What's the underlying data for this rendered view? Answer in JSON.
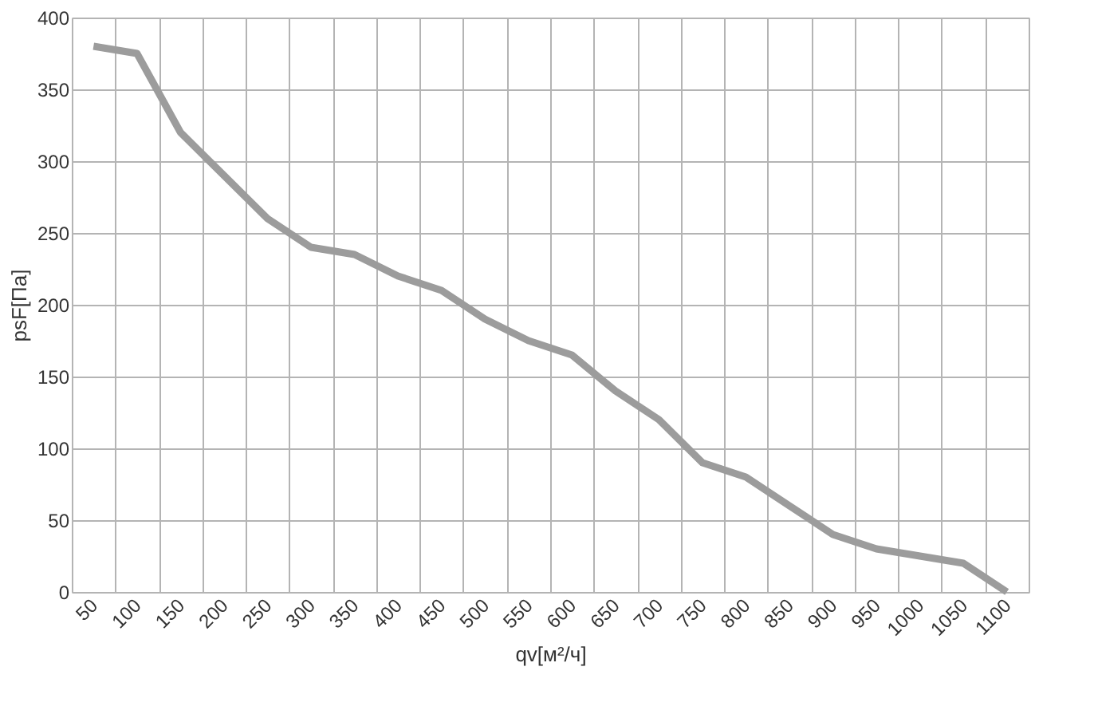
{
  "chart_data": {
    "type": "line",
    "xlabel": "qv[м²/ч]",
    "ylabel": "psF[Па]",
    "categories": [
      "50",
      "100",
      "150",
      "200",
      "250",
      "300",
      "350",
      "400",
      "450",
      "500",
      "550",
      "600",
      "650",
      "700",
      "750",
      "800",
      "850",
      "900",
      "950",
      "1000",
      "1050",
      "1100"
    ],
    "series": [
      {
        "color": "#9c9c9c",
        "values": [
          380,
          375,
          320,
          290,
          260,
          240,
          235,
          220,
          210,
          190,
          175,
          165,
          140,
          120,
          90,
          80,
          60,
          40,
          30,
          25,
          20,
          0
        ]
      }
    ],
    "ylim": [
      0,
      400
    ],
    "yticks": [
      0,
      50,
      100,
      150,
      200,
      250,
      300,
      350,
      400
    ],
    "grid": true,
    "marker": "none",
    "line_style": "solid",
    "legend": false
  }
}
